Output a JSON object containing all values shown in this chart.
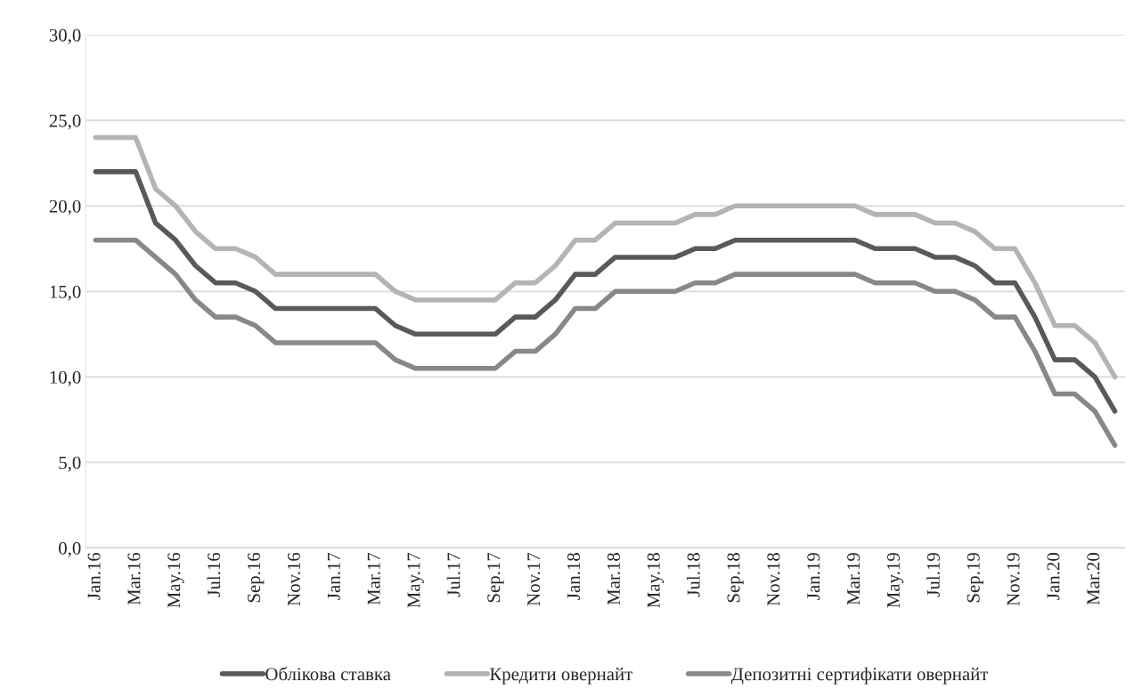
{
  "chart_data": {
    "type": "line",
    "categories": [
      "Jan.16",
      null,
      "Mar.16",
      null,
      "May.16",
      null,
      "Jul.16",
      null,
      "Sep.16",
      null,
      "Nov.16",
      null,
      "Jan.17",
      null,
      "Mar.17",
      null,
      "May.17",
      null,
      "Jul.17",
      null,
      "Sep.17",
      null,
      "Nov.17",
      null,
      "Jan.18",
      null,
      "Mar.18",
      null,
      "May.18",
      null,
      "Jul.18",
      null,
      "Sep.18",
      null,
      "Nov.18",
      null,
      "Jan.19",
      null,
      "Mar.19",
      null,
      "May.19",
      null,
      "Jul.19",
      null,
      "Sep.19",
      null,
      "Nov.19",
      null,
      "Jan.20",
      null,
      "Mar.20",
      null
    ],
    "series": [
      {
        "name": "Облікова ставка",
        "color": "#595959",
        "values": [
          22,
          22,
          22,
          19,
          18,
          16.5,
          15.5,
          15.5,
          15,
          14,
          14,
          14,
          14,
          14,
          14,
          13,
          12.5,
          12.5,
          12.5,
          12.5,
          12.5,
          13.5,
          13.5,
          14.5,
          16,
          16,
          17,
          17,
          17,
          17,
          17.5,
          17.5,
          18,
          18,
          18,
          18,
          18,
          18,
          18,
          17.5,
          17.5,
          17.5,
          17,
          17,
          16.5,
          15.5,
          15.5,
          13.5,
          11,
          11,
          10,
          8
        ]
      },
      {
        "name": "Кредити овернайт",
        "color": "#b4b4b4",
        "values": [
          24,
          24,
          24,
          21,
          20,
          18.5,
          17.5,
          17.5,
          17,
          16,
          16,
          16,
          16,
          16,
          16,
          15,
          14.5,
          14.5,
          14.5,
          14.5,
          14.5,
          15.5,
          15.5,
          16.5,
          18,
          18,
          19,
          19,
          19,
          19,
          19.5,
          19.5,
          20,
          20,
          20,
          20,
          20,
          20,
          20,
          19.5,
          19.5,
          19.5,
          19,
          19,
          18.5,
          17.5,
          17.5,
          15.5,
          13,
          13,
          12,
          10
        ]
      },
      {
        "name": "Депозитні сертифікати овернайт",
        "color": "#888888",
        "values": [
          18,
          18,
          18,
          17,
          16,
          14.5,
          13.5,
          13.5,
          13,
          12,
          12,
          12,
          12,
          12,
          12,
          11,
          10.5,
          10.5,
          10.5,
          10.5,
          10.5,
          11.5,
          11.5,
          12.5,
          14,
          14,
          15,
          15,
          15,
          15,
          15.5,
          15.5,
          16,
          16,
          16,
          16,
          16,
          16,
          16,
          15.5,
          15.5,
          15.5,
          15,
          15,
          14.5,
          13.5,
          13.5,
          11.5,
          9,
          9,
          8,
          6
        ]
      }
    ],
    "ylim": [
      0,
      30
    ],
    "yticks": [
      {
        "value": 0,
        "label": "0,0"
      },
      {
        "value": 5,
        "label": "5,0"
      },
      {
        "value": 10,
        "label": "10,0"
      },
      {
        "value": 15,
        "label": "15,0"
      },
      {
        "value": 20,
        "label": "20,0"
      },
      {
        "value": 25,
        "label": "25,0"
      },
      {
        "value": 30,
        "label": "30,0"
      }
    ],
    "grid": "y",
    "legend": "bottom",
    "marker": "none",
    "line_style": "solid"
  }
}
